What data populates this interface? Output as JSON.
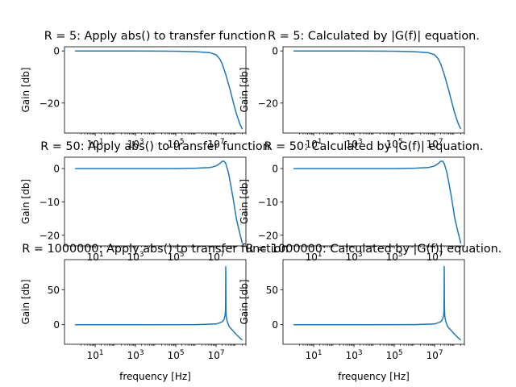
{
  "chart_data": [
    {
      "type": "line",
      "title": "R = 5: Apply abs() to transfer function",
      "xlabel": "",
      "ylabel": "Gain [db]",
      "xscale": "log",
      "xlim": [
        0.3,
        300000000.0
      ],
      "ylim": [
        -31.5,
        1.6
      ],
      "yticks": [
        0,
        -20
      ],
      "xticks": [
        {
          "v": 10,
          "base": "10",
          "exp": "1"
        },
        {
          "v": 1000,
          "base": "10",
          "exp": "3"
        },
        {
          "v": 100000,
          "base": "10",
          "exp": "5"
        },
        {
          "v": 10000000,
          "base": "10",
          "exp": "7"
        }
      ],
      "series": [
        {
          "x": [
            1,
            1000,
            100000,
            1000000,
            5000000,
            10000000,
            15000000,
            20000000,
            30000000,
            50000000,
            70000000,
            100000000,
            150000000,
            200000000
          ],
          "y": [
            0,
            0,
            -0.1,
            -0.3,
            -0.7,
            -1.5,
            -3,
            -5,
            -9,
            -15,
            -19.5,
            -24,
            -28,
            -30
          ],
          "color": "#1f77b4"
        }
      ]
    },
    {
      "type": "line",
      "title": "R = 5: Calculated by |G(f)| equation.",
      "xlabel": "",
      "ylabel": "Gain [db]",
      "xscale": "log",
      "xlim": [
        0.3,
        300000000.0
      ],
      "ylim": [
        -31.5,
        1.6
      ],
      "yticks": [
        0,
        -20
      ],
      "xticks": [
        {
          "v": 10,
          "base": "10",
          "exp": "1"
        },
        {
          "v": 1000,
          "base": "10",
          "exp": "3"
        },
        {
          "v": 100000,
          "base": "10",
          "exp": "5"
        },
        {
          "v": 10000000,
          "base": "10",
          "exp": "7"
        }
      ],
      "series": [
        {
          "x": [
            1,
            1000,
            100000,
            1000000,
            5000000,
            10000000,
            15000000,
            20000000,
            30000000,
            50000000,
            70000000,
            100000000,
            150000000,
            200000000
          ],
          "y": [
            0,
            0,
            -0.1,
            -0.3,
            -0.7,
            -1.5,
            -3,
            -5,
            -9,
            -15,
            -19.5,
            -24,
            -28,
            -30
          ],
          "color": "#1f77b4"
        }
      ]
    },
    {
      "type": "line",
      "title": "R = 50: Apply abs() to transfer function",
      "xlabel": "",
      "ylabel": "Gain [db]",
      "xscale": "log",
      "xlim": [
        0.3,
        300000000.0
      ],
      "ylim": [
        -23.2,
        3.4
      ],
      "yticks": [
        0,
        -10,
        -20
      ],
      "xticks": [
        {
          "v": 10,
          "base": "10",
          "exp": "1"
        },
        {
          "v": 1000,
          "base": "10",
          "exp": "3"
        },
        {
          "v": 100000,
          "base": "10",
          "exp": "5"
        },
        {
          "v": 10000000,
          "base": "10",
          "exp": "7"
        }
      ],
      "series": [
        {
          "x": [
            1,
            1000,
            100000,
            1000000,
            5000000,
            10000000,
            15000000,
            20000000,
            25000000,
            30000000,
            40000000,
            50000000,
            70000000,
            100000000,
            150000000,
            200000000
          ],
          "y": [
            0,
            0,
            0,
            0.1,
            0.3,
            0.8,
            1.5,
            2.2,
            2.2,
            1.5,
            -1,
            -4,
            -9,
            -15,
            -19.5,
            -22.5
          ],
          "color": "#1f77b4"
        }
      ]
    },
    {
      "type": "line",
      "title": "R = 50: Calculated by |G(f)| equation.",
      "xlabel": "",
      "ylabel": "Gain [db]",
      "xscale": "log",
      "xlim": [
        0.3,
        300000000.0
      ],
      "ylim": [
        -23.2,
        3.4
      ],
      "yticks": [
        0,
        -10,
        -20
      ],
      "xticks": [
        {
          "v": 10,
          "base": "10",
          "exp": "1"
        },
        {
          "v": 1000,
          "base": "10",
          "exp": "3"
        },
        {
          "v": 100000,
          "base": "10",
          "exp": "5"
        },
        {
          "v": 10000000,
          "base": "10",
          "exp": "7"
        }
      ],
      "series": [
        {
          "x": [
            1,
            1000,
            100000,
            1000000,
            5000000,
            10000000,
            15000000,
            20000000,
            25000000,
            30000000,
            40000000,
            50000000,
            70000000,
            100000000,
            150000000,
            200000000
          ],
          "y": [
            0,
            0,
            0,
            0.1,
            0.3,
            0.8,
            1.5,
            2.2,
            2.2,
            1.5,
            -1,
            -4,
            -9,
            -15,
            -19.5,
            -22.5
          ],
          "color": "#1f77b4"
        }
      ]
    },
    {
      "type": "line",
      "title": "R = 1000000: Apply abs() to transfer function",
      "xlabel": "frequency [Hz]",
      "ylabel": "Gain [db]",
      "xscale": "log",
      "xlim": [
        0.3,
        300000000.0
      ],
      "ylim": [
        -28,
        93
      ],
      "yticks": [
        0,
        50
      ],
      "xticks": [
        {
          "v": 10,
          "base": "10",
          "exp": "1"
        },
        {
          "v": 1000,
          "base": "10",
          "exp": "3"
        },
        {
          "v": 100000,
          "base": "10",
          "exp": "5"
        },
        {
          "v": 10000000,
          "base": "10",
          "exp": "7"
        }
      ],
      "series": [
        {
          "x": [
            1,
            1000,
            1000000,
            10000000,
            20000000,
            25000000,
            28000000,
            29000000,
            29500000,
            29800000,
            30000000,
            30200000,
            30500000,
            31000000,
            32000000,
            35000000,
            45000000,
            70000000,
            100000000,
            150000000,
            200000000
          ],
          "y": [
            0,
            0,
            0.1,
            1,
            4,
            8,
            14,
            20,
            35,
            60,
            83,
            60,
            35,
            20,
            12,
            5,
            -3,
            -9,
            -14,
            -19,
            -22
          ],
          "color": "#1f77b4"
        }
      ]
    },
    {
      "type": "line",
      "title": "R = 1000000: Calculated by |G(f)| equation.",
      "xlabel": "frequency [Hz]",
      "ylabel": "Gain [db]",
      "xscale": "log",
      "xlim": [
        0.3,
        300000000.0
      ],
      "ylim": [
        -28,
        93
      ],
      "yticks": [
        0,
        50
      ],
      "xticks": [
        {
          "v": 10,
          "base": "10",
          "exp": "1"
        },
        {
          "v": 1000,
          "base": "10",
          "exp": "3"
        },
        {
          "v": 100000,
          "base": "10",
          "exp": "5"
        },
        {
          "v": 10000000,
          "base": "10",
          "exp": "7"
        }
      ],
      "series": [
        {
          "x": [
            1,
            1000,
            1000000,
            10000000,
            20000000,
            25000000,
            28000000,
            29000000,
            29500000,
            29800000,
            30000000,
            30200000,
            30500000,
            31000000,
            32000000,
            35000000,
            45000000,
            70000000,
            100000000,
            150000000,
            200000000
          ],
          "y": [
            0,
            0,
            0.1,
            1,
            4,
            8,
            14,
            20,
            35,
            60,
            83,
            60,
            35,
            20,
            12,
            5,
            -3,
            -9,
            -14,
            -19,
            -22
          ],
          "color": "#1f77b4"
        }
      ]
    }
  ]
}
